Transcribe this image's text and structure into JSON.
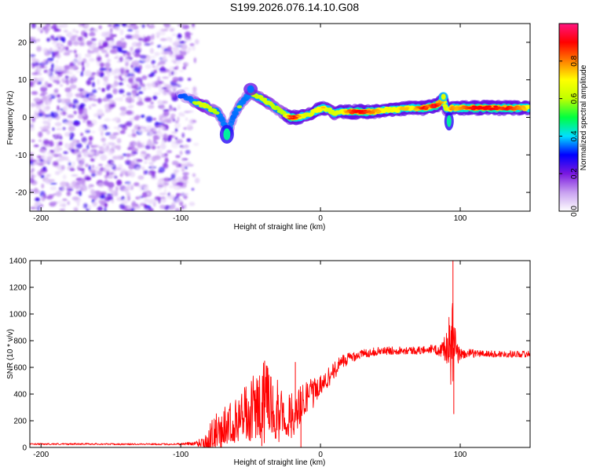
{
  "figure_title": "S199.2026.076.14.10.G08",
  "chart_data": [
    {
      "type": "heatmap",
      "title": "S199.2026.076.14.10.G08",
      "xlabel": "Height of straight line (km)",
      "ylabel": "Frequency (Hz)",
      "xlim": [
        -208,
        150
      ],
      "ylim": [
        -25,
        25
      ],
      "xticks": [
        -200,
        -100,
        0,
        100
      ],
      "yticks": [
        -20,
        -10,
        0,
        10,
        20
      ],
      "colorbar": {
        "label": "Normalized spectral amplitude",
        "range": [
          0,
          1
        ],
        "ticks": [
          0.0,
          0.2,
          0.4,
          0.6,
          0.8
        ],
        "colormap": [
          "#ffffff",
          "#c8a0f0",
          "#7a18e0",
          "#0000ff",
          "#00e0ff",
          "#00ff40",
          "#c0ff00",
          "#ffff00",
          "#ff8000",
          "#ff0000",
          "#ff1480"
        ]
      },
      "noise_region": {
        "x_range": [
          -208,
          -88
        ],
        "y_range": [
          -25,
          25
        ]
      },
      "ridge": [
        {
          "x": -100,
          "y": 6.0,
          "a": 0.2
        },
        {
          "x": -92,
          "y": 4.5,
          "a": 0.35
        },
        {
          "x": -86,
          "y": 3.5,
          "a": 0.55
        },
        {
          "x": -82,
          "y": 3.0,
          "a": 0.55
        },
        {
          "x": -78,
          "y": 2.0,
          "a": 0.45
        },
        {
          "x": -74,
          "y": 1.5,
          "a": 0.4
        },
        {
          "x": -70,
          "y": -1.0,
          "a": 0.35
        },
        {
          "x": -66,
          "y": -4.0,
          "a": 0.4
        },
        {
          "x": -62,
          "y": 0.5,
          "a": 0.3
        },
        {
          "x": -58,
          "y": 3.0,
          "a": 0.4
        },
        {
          "x": -54,
          "y": 5.0,
          "a": 0.35
        },
        {
          "x": -50,
          "y": 6.5,
          "a": 0.4
        },
        {
          "x": -46,
          "y": 5.5,
          "a": 0.45
        },
        {
          "x": -42,
          "y": 5.0,
          "a": 0.5
        },
        {
          "x": -38,
          "y": 4.0,
          "a": 0.55
        },
        {
          "x": -34,
          "y": 3.0,
          "a": 0.45
        },
        {
          "x": -30,
          "y": 2.0,
          "a": 0.4
        },
        {
          "x": -26,
          "y": 1.0,
          "a": 0.45
        },
        {
          "x": -22,
          "y": 0.0,
          "a": 0.85
        },
        {
          "x": -18,
          "y": 0.0,
          "a": 0.9
        },
        {
          "x": -14,
          "y": 0.2,
          "a": 0.7
        },
        {
          "x": -10,
          "y": 0.5,
          "a": 0.55
        },
        {
          "x": -6,
          "y": 1.2,
          "a": 0.6
        },
        {
          "x": -2,
          "y": 2.0,
          "a": 0.7
        },
        {
          "x": 2,
          "y": 2.5,
          "a": 0.75
        },
        {
          "x": 6,
          "y": 2.0,
          "a": 0.55
        },
        {
          "x": 10,
          "y": 1.0,
          "a": 0.55
        },
        {
          "x": 14,
          "y": 1.5,
          "a": 0.6
        },
        {
          "x": 18,
          "y": 1.5,
          "a": 0.75
        },
        {
          "x": 22,
          "y": 1.5,
          "a": 0.85
        },
        {
          "x": 26,
          "y": 1.5,
          "a": 0.9
        },
        {
          "x": 30,
          "y": 1.5,
          "a": 0.9
        },
        {
          "x": 34,
          "y": 1.5,
          "a": 0.85
        },
        {
          "x": 38,
          "y": 1.5,
          "a": 0.8
        },
        {
          "x": 42,
          "y": 1.8,
          "a": 0.75
        },
        {
          "x": 46,
          "y": 2.0,
          "a": 0.7
        },
        {
          "x": 50,
          "y": 2.0,
          "a": 0.65
        },
        {
          "x": 54,
          "y": 2.0,
          "a": 0.7
        },
        {
          "x": 58,
          "y": 2.2,
          "a": 0.75
        },
        {
          "x": 62,
          "y": 2.5,
          "a": 0.75
        },
        {
          "x": 66,
          "y": 2.5,
          "a": 0.7
        },
        {
          "x": 70,
          "y": 2.5,
          "a": 0.8
        },
        {
          "x": 74,
          "y": 2.5,
          "a": 0.9
        },
        {
          "x": 78,
          "y": 2.8,
          "a": 0.8
        },
        {
          "x": 82,
          "y": 3.0,
          "a": 0.95
        },
        {
          "x": 86,
          "y": 4.0,
          "a": 0.8
        },
        {
          "x": 88,
          "y": 5.0,
          "a": 0.7
        },
        {
          "x": 90,
          "y": 2.0,
          "a": 0.55
        },
        {
          "x": 94,
          "y": 2.5,
          "a": 0.8
        },
        {
          "x": 98,
          "y": 2.5,
          "a": 0.75
        },
        {
          "x": 102,
          "y": 2.5,
          "a": 0.8
        },
        {
          "x": 106,
          "y": 2.5,
          "a": 0.85
        },
        {
          "x": 110,
          "y": 2.5,
          "a": 0.9
        },
        {
          "x": 114,
          "y": 2.5,
          "a": 0.9
        },
        {
          "x": 118,
          "y": 2.5,
          "a": 0.9
        },
        {
          "x": 122,
          "y": 2.5,
          "a": 0.9
        },
        {
          "x": 126,
          "y": 2.5,
          "a": 0.9
        },
        {
          "x": 130,
          "y": 2.5,
          "a": 0.85
        },
        {
          "x": 134,
          "y": 2.5,
          "a": 0.9
        },
        {
          "x": 138,
          "y": 2.5,
          "a": 0.85
        },
        {
          "x": 142,
          "y": 2.5,
          "a": 0.8
        },
        {
          "x": 146,
          "y": 2.5,
          "a": 0.75
        },
        {
          "x": 150,
          "y": 2.5,
          "a": 0.7
        }
      ],
      "features": [
        {
          "x": -67,
          "y": -4.5,
          "a": 0.45,
          "w": 3,
          "h": 3
        },
        {
          "x": -50,
          "y": 7.5,
          "a": 0.35,
          "w": 3,
          "h": 2
        },
        {
          "x": 92,
          "y": -1.0,
          "a": 0.45,
          "w": 2,
          "h": 3
        },
        {
          "x": 88,
          "y": 5.5,
          "a": 0.65,
          "w": 2,
          "h": 1.5
        }
      ]
    },
    {
      "type": "line",
      "xlabel": "Height of straight line (km)",
      "ylabel": "SNR (10 * v/v)",
      "xlim": [
        -208,
        150
      ],
      "ylim": [
        0,
        1400
      ],
      "xticks": [
        -200,
        -100,
        0,
        100
      ],
      "yticks": [
        0,
        200,
        400,
        600,
        800,
        1000,
        1200,
        1400
      ],
      "series": [
        {
          "name": "SNR",
          "color": "#ff0000",
          "x": [
            -208,
            -200,
            -190,
            -180,
            -170,
            -160,
            -150,
            -140,
            -130,
            -120,
            -110,
            -100,
            -90,
            -85,
            -80,
            -75,
            -70,
            -65,
            -60,
            -55,
            -50,
            -45,
            -40,
            -35,
            -30,
            -25,
            -20,
            -15,
            -10,
            -5,
            0,
            5,
            10,
            15,
            20,
            25,
            30,
            40,
            50,
            60,
            70,
            80,
            85,
            90,
            93,
            95,
            97,
            100,
            110,
            120,
            130,
            140,
            150
          ],
          "y": [
            25,
            25,
            26,
            25,
            27,
            26,
            25,
            24,
            26,
            25,
            24,
            26,
            30,
            40,
            60,
            120,
            170,
            190,
            210,
            240,
            280,
            320,
            350,
            290,
            300,
            260,
            250,
            320,
            380,
            420,
            470,
            530,
            580,
            640,
            670,
            690,
            700,
            720,
            725,
            730,
            725,
            740,
            720,
            760,
            750,
            760,
            690,
            700,
            705,
            700,
            700,
            700,
            700
          ],
          "amp": [
            6,
            6,
            6,
            6,
            6,
            6,
            6,
            6,
            6,
            6,
            6,
            8,
            15,
            40,
            110,
            130,
            140,
            150,
            160,
            200,
            240,
            260,
            300,
            250,
            220,
            200,
            180,
            150,
            120,
            100,
            80,
            70,
            60,
            55,
            45,
            40,
            35,
            30,
            30,
            30,
            30,
            30,
            40,
            120,
            280,
            380,
            120,
            40,
            30,
            25,
            25,
            25,
            25
          ]
        }
      ],
      "spikes": [
        {
          "x": 94.8,
          "y": 1400
        },
        {
          "x": 95.4,
          "y": 250
        },
        {
          "x": 93.8,
          "y": 910
        },
        {
          "x": -40,
          "y": 650
        },
        {
          "x": -18,
          "y": 640
        },
        {
          "x": -42,
          "y": 10
        },
        {
          "x": -14,
          "y": 0
        }
      ]
    }
  ]
}
